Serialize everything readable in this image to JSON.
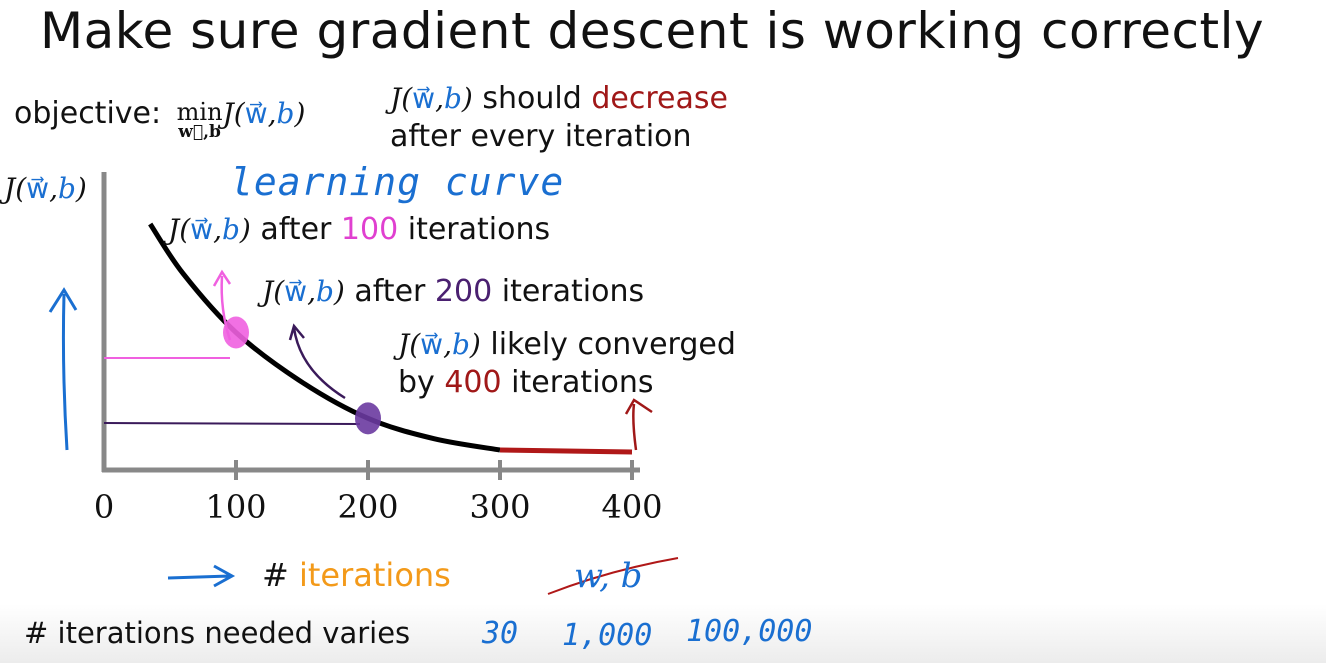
{
  "title": "Make sure gradient descent is working correctly",
  "objective": {
    "label": "objective:",
    "min": "min",
    "min_sub": "w⃗,b"
  },
  "cost_function": {
    "J": "J(",
    "w": "w⃗",
    "comma": ",",
    "b": "b",
    "close": ")"
  },
  "note": {
    "part1": "should",
    "highlight": "decrease",
    "line2": "after every iteration",
    "highlight_color": "#a01818"
  },
  "learning_curve_label": "learning curve",
  "annotations": [
    {
      "prefix": "after",
      "number": "100",
      "suffix": "iterations",
      "color": "#e040d0"
    },
    {
      "prefix": "after",
      "number": "200",
      "suffix": "iterations",
      "color": "#4a2070"
    },
    {
      "prefix": "likely converged",
      "line2_prefix": "by",
      "number": "400",
      "suffix": "iterations",
      "color": "#a01818"
    }
  ],
  "x_axis": {
    "symbol": "#",
    "word": "iterations",
    "word_color": "#f39a1a"
  },
  "crossed_out": "w, b",
  "bottom": {
    "label": "# iterations needed varies",
    "values": [
      "30",
      "1,000",
      "100,000"
    ]
  },
  "chart_data": {
    "type": "line",
    "title": "",
    "xlabel": "# iterations",
    "ylabel": "J(w,b)",
    "xlim": [
      0,
      400
    ],
    "xticks": [
      "0",
      "100",
      "200",
      "300",
      "400"
    ],
    "series": [
      {
        "x": [
          35,
          60,
          100,
          150,
          200,
          250,
          300
        ],
        "y": [
          1.0,
          0.78,
          0.52,
          0.3,
          0.14,
          0.05,
          0.0
        ]
      }
    ],
    "converged_segment": {
      "x": [
        300,
        400
      ],
      "color": "#b01818"
    },
    "markers": [
      {
        "x": 100,
        "color": "#f060e0"
      },
      {
        "x": 200,
        "color": "#6a3aa0"
      }
    ]
  }
}
